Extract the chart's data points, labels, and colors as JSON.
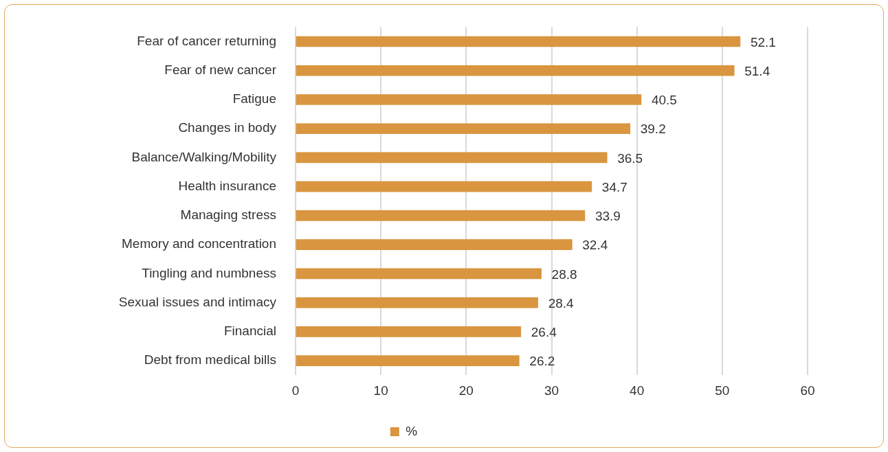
{
  "chart_data": {
    "type": "bar",
    "orientation": "horizontal",
    "categories": [
      "Fear of cancer returning",
      "Fear of new cancer",
      "Fatigue",
      "Changes in body",
      "Balance/Walking/Mobility",
      "Health insurance",
      "Managing stress",
      "Memory and concentration",
      "Tingling and numbness",
      "Sexual issues and intimacy",
      "Financial",
      "Debt from medical bills"
    ],
    "series": [
      {
        "name": "%",
        "color": "#d9953f",
        "values": [
          52.1,
          51.4,
          40.5,
          39.2,
          36.5,
          34.7,
          33.9,
          32.4,
          28.8,
          28.4,
          26.4,
          26.2
        ]
      }
    ],
    "xlim": [
      0,
      60
    ],
    "xticks": [
      0,
      10,
      20,
      30,
      40,
      50,
      60
    ],
    "grid": "x",
    "legend": "bottom",
    "data_labels": true
  }
}
